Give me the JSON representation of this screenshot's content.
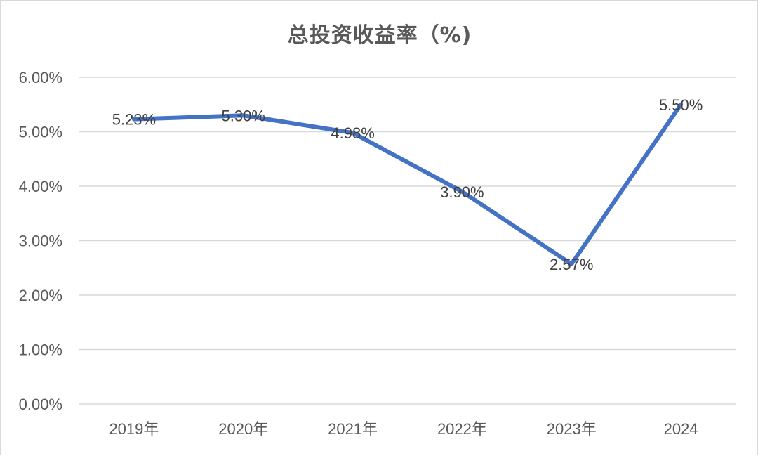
{
  "chart_data": {
    "type": "line",
    "title": "总投资收益率（%)",
    "categories": [
      "2019年",
      "2020年",
      "2021年",
      "2022年",
      "2023年",
      "2024"
    ],
    "series": [
      {
        "values": [
          5.23,
          5.3,
          4.98,
          3.9,
          2.57,
          5.5
        ],
        "data_labels": [
          "5.23%",
          "5.30%",
          "4.98%",
          "3.90%",
          "2.57%",
          "5.50%"
        ],
        "color": "#4472C4"
      }
    ],
    "ylim": [
      0,
      6
    ],
    "yticks": [
      0,
      1,
      2,
      3,
      4,
      5,
      6
    ],
    "ytick_labels": [
      "0.00%",
      "1.00%",
      "2.00%",
      "3.00%",
      "4.00%",
      "5.00%",
      "6.00%"
    ],
    "grid": true,
    "legend": "none",
    "gridline_color": "#d9d9d9",
    "text_color": "#595959"
  }
}
